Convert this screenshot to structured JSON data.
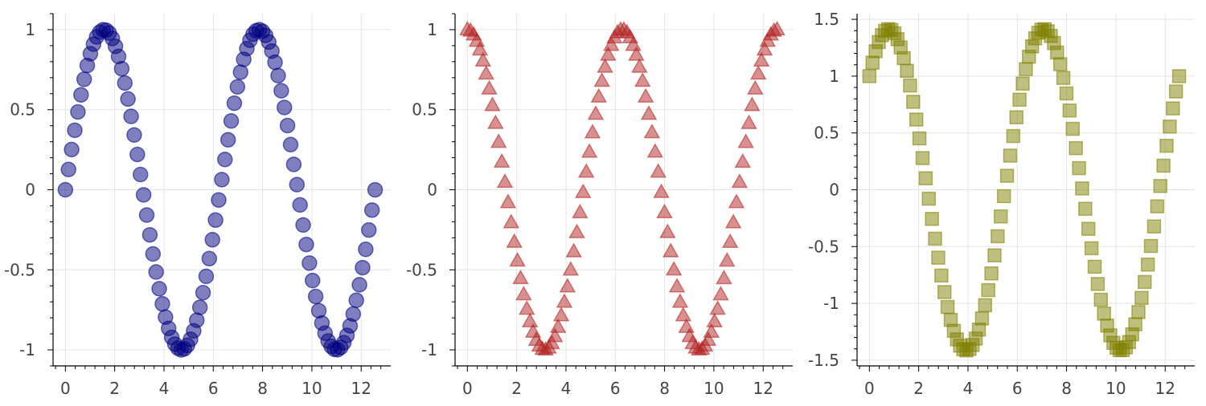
{
  "chart_data": [
    {
      "type": "scatter",
      "marker": "circle",
      "function": "sin(x)",
      "x_range": [
        0,
        12.566
      ],
      "points": 100,
      "xlim": [
        -0.5,
        13.2
      ],
      "ylim": [
        -1.1,
        1.1
      ],
      "xticks": [
        0,
        2,
        4,
        6,
        8,
        10,
        12
      ],
      "yticks": [
        -1,
        -0.5,
        0,
        0.5,
        1
      ],
      "ytick_labels": [
        "-1",
        "-0.5",
        "0",
        "0.5",
        "1"
      ],
      "grid": true,
      "color": "#000080"
    },
    {
      "type": "scatter",
      "marker": "triangle",
      "function": "cos(x)",
      "x_range": [
        0,
        12.566
      ],
      "points": 100,
      "xlim": [
        -0.5,
        13.2
      ],
      "ylim": [
        -1.1,
        1.1
      ],
      "xticks": [
        0,
        2,
        4,
        6,
        8,
        10,
        12
      ],
      "yticks": [
        -1,
        -0.5,
        0,
        0.5,
        1
      ],
      "ytick_labels": [
        "-1",
        "-0.5",
        "0",
        "0.5",
        "1"
      ],
      "grid": true,
      "color": "#b22222"
    },
    {
      "type": "scatter",
      "marker": "square",
      "function": "sin(x) + cos(x)",
      "x_range": [
        0,
        12.566
      ],
      "points": 100,
      "xlim": [
        -0.5,
        13.2
      ],
      "ylim": [
        -1.55,
        1.55
      ],
      "xticks": [
        0,
        2,
        4,
        6,
        8,
        10,
        12
      ],
      "yticks": [
        -1.5,
        -1,
        -0.5,
        0,
        0.5,
        1,
        1.5
      ],
      "ytick_labels": [
        "-1.5",
        "-1",
        "-0.5",
        "0",
        "0.5",
        "1",
        "1.5"
      ],
      "grid": true,
      "color": "#808000"
    }
  ]
}
